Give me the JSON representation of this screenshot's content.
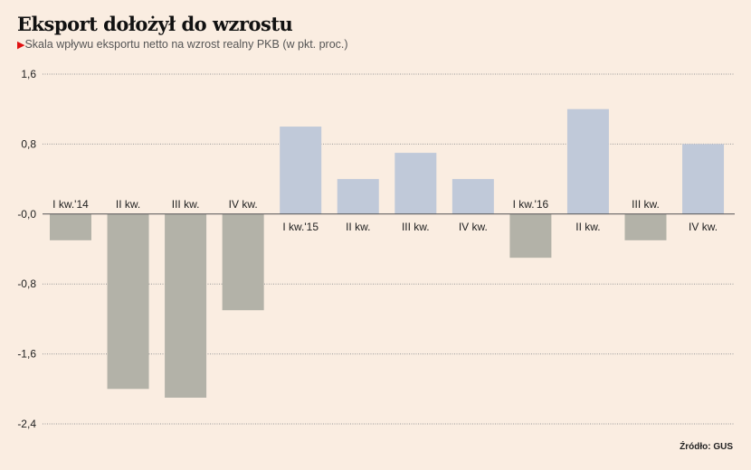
{
  "chart_data": {
    "type": "bar",
    "title": "Eksport dołożył do wzrostu",
    "subtitle": "Skala wpływu eksportu netto na wzrost realny PKB (w pkt. proc.)",
    "source": "Źródło: GUS",
    "categories": [
      "I kw.'14",
      "II kw.",
      "III kw.",
      "IV kw.",
      "I kw.'15",
      "II kw.",
      "III kw.",
      "IV kw.",
      "I kw.'16",
      "II kw.",
      "III kw.",
      "IV kw."
    ],
    "values": [
      -0.3,
      -2.0,
      -2.1,
      -1.1,
      1.0,
      0.4,
      0.7,
      0.4,
      -0.5,
      1.2,
      -0.3,
      0.8
    ],
    "yticks": [
      1.6,
      0.8,
      0.0,
      -0.8,
      -1.6,
      -2.4
    ],
    "ytick_labels": [
      "1,6",
      "0,8",
      "-0,0",
      "-0,8",
      "-1,6",
      "-2,4"
    ],
    "ylim": [
      -2.4,
      1.6
    ],
    "grid": true,
    "colors": {
      "positive": "#c0c9d9",
      "negative": "#b3b2a8",
      "accent": "#e01010"
    }
  }
}
